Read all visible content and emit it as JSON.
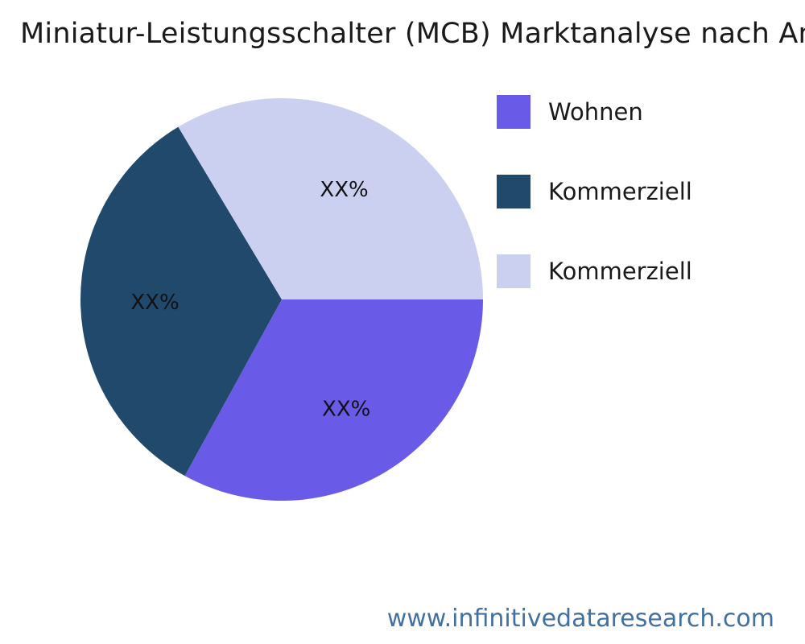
{
  "title": "Miniatur-Leistungsschalter (MCB) Marktanalyse nach An",
  "footer": {
    "link_text": "www.infinitivedataresearch.com",
    "color": "#4170A2"
  },
  "chart_data": {
    "type": "pie",
    "title": "Miniatur-Leistungsschalter (MCB) Marktanalyse nach An",
    "legend_position": "right",
    "start_angle_deg": 0,
    "direction": "clockwise",
    "label_radius_ratio": 0.63,
    "slices": [
      {
        "label": "Wohnen",
        "value": 33.0,
        "display_value": "XX%",
        "color": "#6A5AE8"
      },
      {
        "label": "Kommerziell",
        "value": 33.4,
        "display_value": "XX%",
        "color": "#21496C"
      },
      {
        "label": "Kommerziell",
        "value": 33.6,
        "display_value": "XX%",
        "color": "#CCD0F0"
      }
    ]
  }
}
